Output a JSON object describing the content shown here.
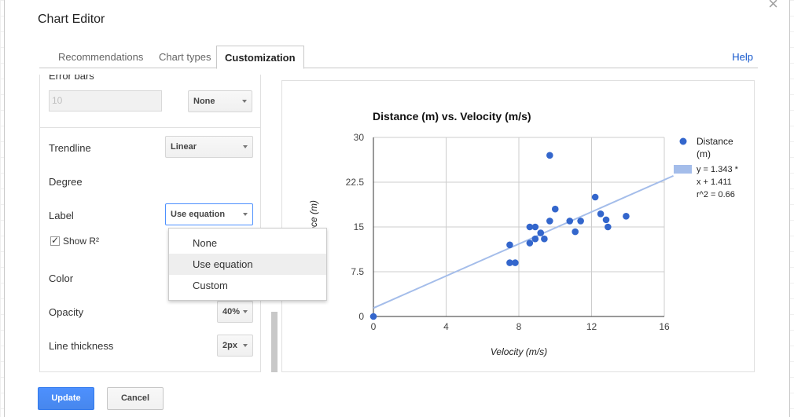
{
  "dialog": {
    "title": "Chart Editor",
    "close_glyph": "×",
    "help_label": "Help",
    "tabs": [
      {
        "label": "Recommendations",
        "active": false
      },
      {
        "label": "Chart types",
        "active": false
      },
      {
        "label": "Customization",
        "active": true
      }
    ]
  },
  "left": {
    "error_bars_label": "Error bars",
    "error_value_placeholder": "10",
    "error_type": "None",
    "trendline_label": "Trendline",
    "trendline_value": "Linear",
    "degree_label": "Degree",
    "label_label": "Label",
    "label_value": "Use equation",
    "show_r2_label": "Show R²",
    "show_r2_checked": true,
    "color_label": "Color",
    "opacity_label": "Opacity",
    "opacity_value": "40%",
    "thickness_label": "Line thickness",
    "thickness_value": "2px"
  },
  "label_menu": {
    "options": [
      "None",
      "Use equation",
      "Custom"
    ],
    "highlighted": "Use equation"
  },
  "chart_data": {
    "type": "scatter",
    "title": "Distance (m) vs. Velocity (m/s)",
    "xlabel": "Velocity (m/s)",
    "ylabel": "Distance (m)",
    "xlim": [
      0,
      16
    ],
    "ylim": [
      0,
      30
    ],
    "xticks": [
      "0",
      "4",
      "8",
      "12",
      "16"
    ],
    "yticks": [
      "0",
      "7.5",
      "15",
      "22.5",
      "30"
    ],
    "grid": true,
    "legend_position": "right",
    "series": [
      {
        "name": "Distance (m)",
        "color": "#3366cc",
        "points": [
          [
            0,
            0
          ],
          [
            7.5,
            12
          ],
          [
            7.5,
            9
          ],
          [
            7.8,
            9
          ],
          [
            8.6,
            15
          ],
          [
            8.6,
            12.3
          ],
          [
            8.9,
            15
          ],
          [
            8.9,
            13
          ],
          [
            9.2,
            14
          ],
          [
            9.4,
            13
          ],
          [
            9.7,
            27
          ],
          [
            9.7,
            16
          ],
          [
            10,
            18
          ],
          [
            10.8,
            16
          ],
          [
            11.1,
            14.2
          ],
          [
            11.4,
            16
          ],
          [
            12.2,
            20
          ],
          [
            12.5,
            17.2
          ],
          [
            12.8,
            16.2
          ],
          [
            12.9,
            15
          ],
          [
            13.9,
            16.8
          ]
        ]
      }
    ],
    "trendline": {
      "type": "linear",
      "slope": 1.343,
      "intercept": 1.411,
      "color": "#a4bdea",
      "legend_label_lines": [
        "y = 1.343 *",
        "x + 1.411",
        "r^2 = 0.66"
      ]
    }
  },
  "footer": {
    "update_label": "Update",
    "cancel_label": "Cancel"
  }
}
